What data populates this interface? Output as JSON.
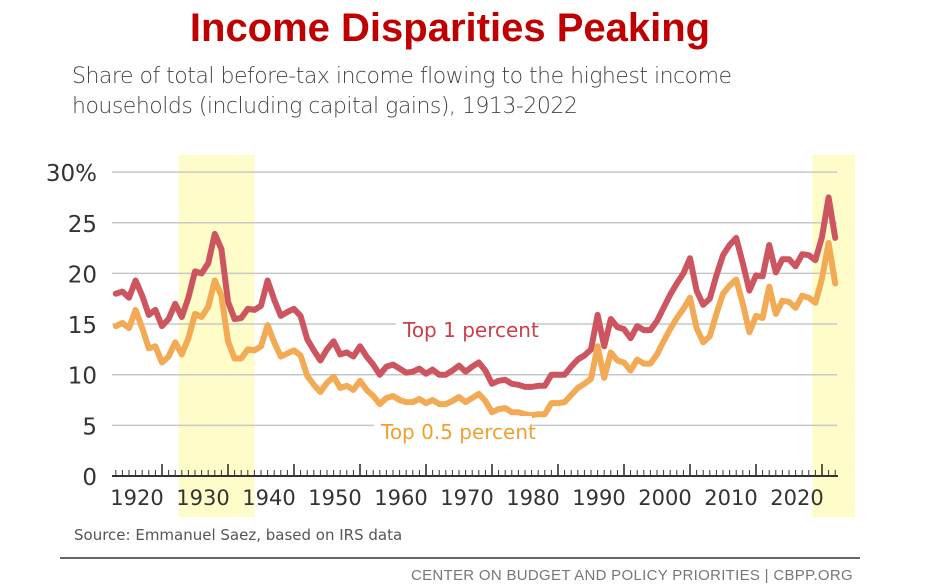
{
  "title": "Income Disparities Peaking",
  "subtitle": "Share of total before-tax income flowing to the highest income households (including capital gains), 1913-2022",
  "source": "Source: Emmanuel Saez, based on IRS data",
  "footer": "CENTER ON BUDGET AND POLICY PRIORITIES | CBPP.ORG",
  "chart_data": {
    "type": "line",
    "title": "Income Disparities Peaking",
    "xlabel": "",
    "ylabel": "",
    "xlim": [
      1913,
      2022
    ],
    "ylim": [
      0,
      30
    ],
    "yticks": [
      "0",
      "5",
      "10",
      "15",
      "20",
      "25",
      "30%"
    ],
    "ytick_values": [
      0,
      5,
      10,
      15,
      20,
      25,
      30
    ],
    "xticks": [
      "1920",
      "1930",
      "1940",
      "1950",
      "1960",
      "1970",
      "1980",
      "1990",
      "2000",
      "2010",
      "2020"
    ],
    "xtick_values": [
      1920,
      1930,
      1940,
      1950,
      1960,
      1970,
      1980,
      1990,
      2000,
      2010,
      2020
    ],
    "grid": true,
    "highlight_periods": [
      [
        1923,
        1934
      ],
      [
        2019,
        2025
      ]
    ],
    "colors": {
      "top1": "#cc5560",
      "top05": "#f2aa55",
      "highlight": "#fefcc8",
      "top1_label": "#c8404c",
      "top05_label": "#f0a030"
    },
    "start_year": 1913,
    "series": [
      {
        "name": "Top 1 percent",
        "values": [
          18.0,
          18.2,
          17.6,
          19.3,
          17.8,
          15.9,
          16.4,
          14.8,
          15.5,
          17.0,
          15.7,
          17.6,
          20.2,
          20.0,
          21.0,
          23.9,
          22.4,
          17.2,
          15.5,
          15.6,
          16.5,
          16.4,
          16.8,
          19.3,
          17.4,
          15.8,
          16.2,
          16.5,
          15.8,
          13.5,
          12.4,
          11.4,
          12.5,
          13.3,
          12.0,
          12.2,
          11.8,
          12.8,
          11.8,
          11.0,
          10.0,
          10.8,
          11.0,
          10.6,
          10.2,
          10.3,
          10.6,
          10.1,
          10.5,
          10.0,
          10.0,
          10.4,
          10.9,
          10.3,
          10.8,
          11.2,
          10.4,
          9.1,
          9.4,
          9.5,
          9.1,
          9.0,
          8.8,
          8.8,
          8.9,
          8.9,
          10.0,
          10.0,
          10.0,
          10.8,
          11.5,
          11.9,
          12.5,
          15.9,
          12.8,
          15.5,
          14.7,
          14.5,
          13.6,
          14.8,
          14.4,
          14.4,
          15.3,
          16.6,
          17.9,
          19.0,
          20.0,
          21.5,
          18.3,
          16.9,
          17.5,
          19.8,
          21.8,
          22.8,
          23.5,
          21.0,
          18.3,
          19.8,
          19.7,
          22.8,
          20.1,
          21.4,
          21.4,
          20.7,
          21.9,
          21.8,
          21.3,
          23.6,
          27.5,
          23.5
        ]
      },
      {
        "name": "Top 0.5 percent",
        "values": [
          14.8,
          15.1,
          14.6,
          16.4,
          14.6,
          12.6,
          12.8,
          11.2,
          11.8,
          13.2,
          12.0,
          13.6,
          16.0,
          15.7,
          16.7,
          19.3,
          17.8,
          13.3,
          11.6,
          11.6,
          12.5,
          12.4,
          12.8,
          14.9,
          13.2,
          11.8,
          12.1,
          12.4,
          11.9,
          9.9,
          9.0,
          8.3,
          9.2,
          9.8,
          8.7,
          8.9,
          8.5,
          9.4,
          8.5,
          7.9,
          7.1,
          7.7,
          7.9,
          7.5,
          7.3,
          7.3,
          7.6,
          7.2,
          7.5,
          7.1,
          7.1,
          7.4,
          7.8,
          7.3,
          7.7,
          8.1,
          7.4,
          6.3,
          6.6,
          6.7,
          6.3,
          6.3,
          6.1,
          6.0,
          6.1,
          6.1,
          7.2,
          7.2,
          7.3,
          8.0,
          8.7,
          9.1,
          9.6,
          12.8,
          9.7,
          12.2,
          11.4,
          11.2,
          10.4,
          11.5,
          11.1,
          11.1,
          12.0,
          13.3,
          14.5,
          15.6,
          16.5,
          17.6,
          14.6,
          13.2,
          13.8,
          16.0,
          18.0,
          18.8,
          19.4,
          17.0,
          14.2,
          15.8,
          15.6,
          18.7,
          16.0,
          17.3,
          17.2,
          16.6,
          17.8,
          17.6,
          17.1,
          19.5,
          23.0,
          19.0
        ]
      }
    ]
  }
}
